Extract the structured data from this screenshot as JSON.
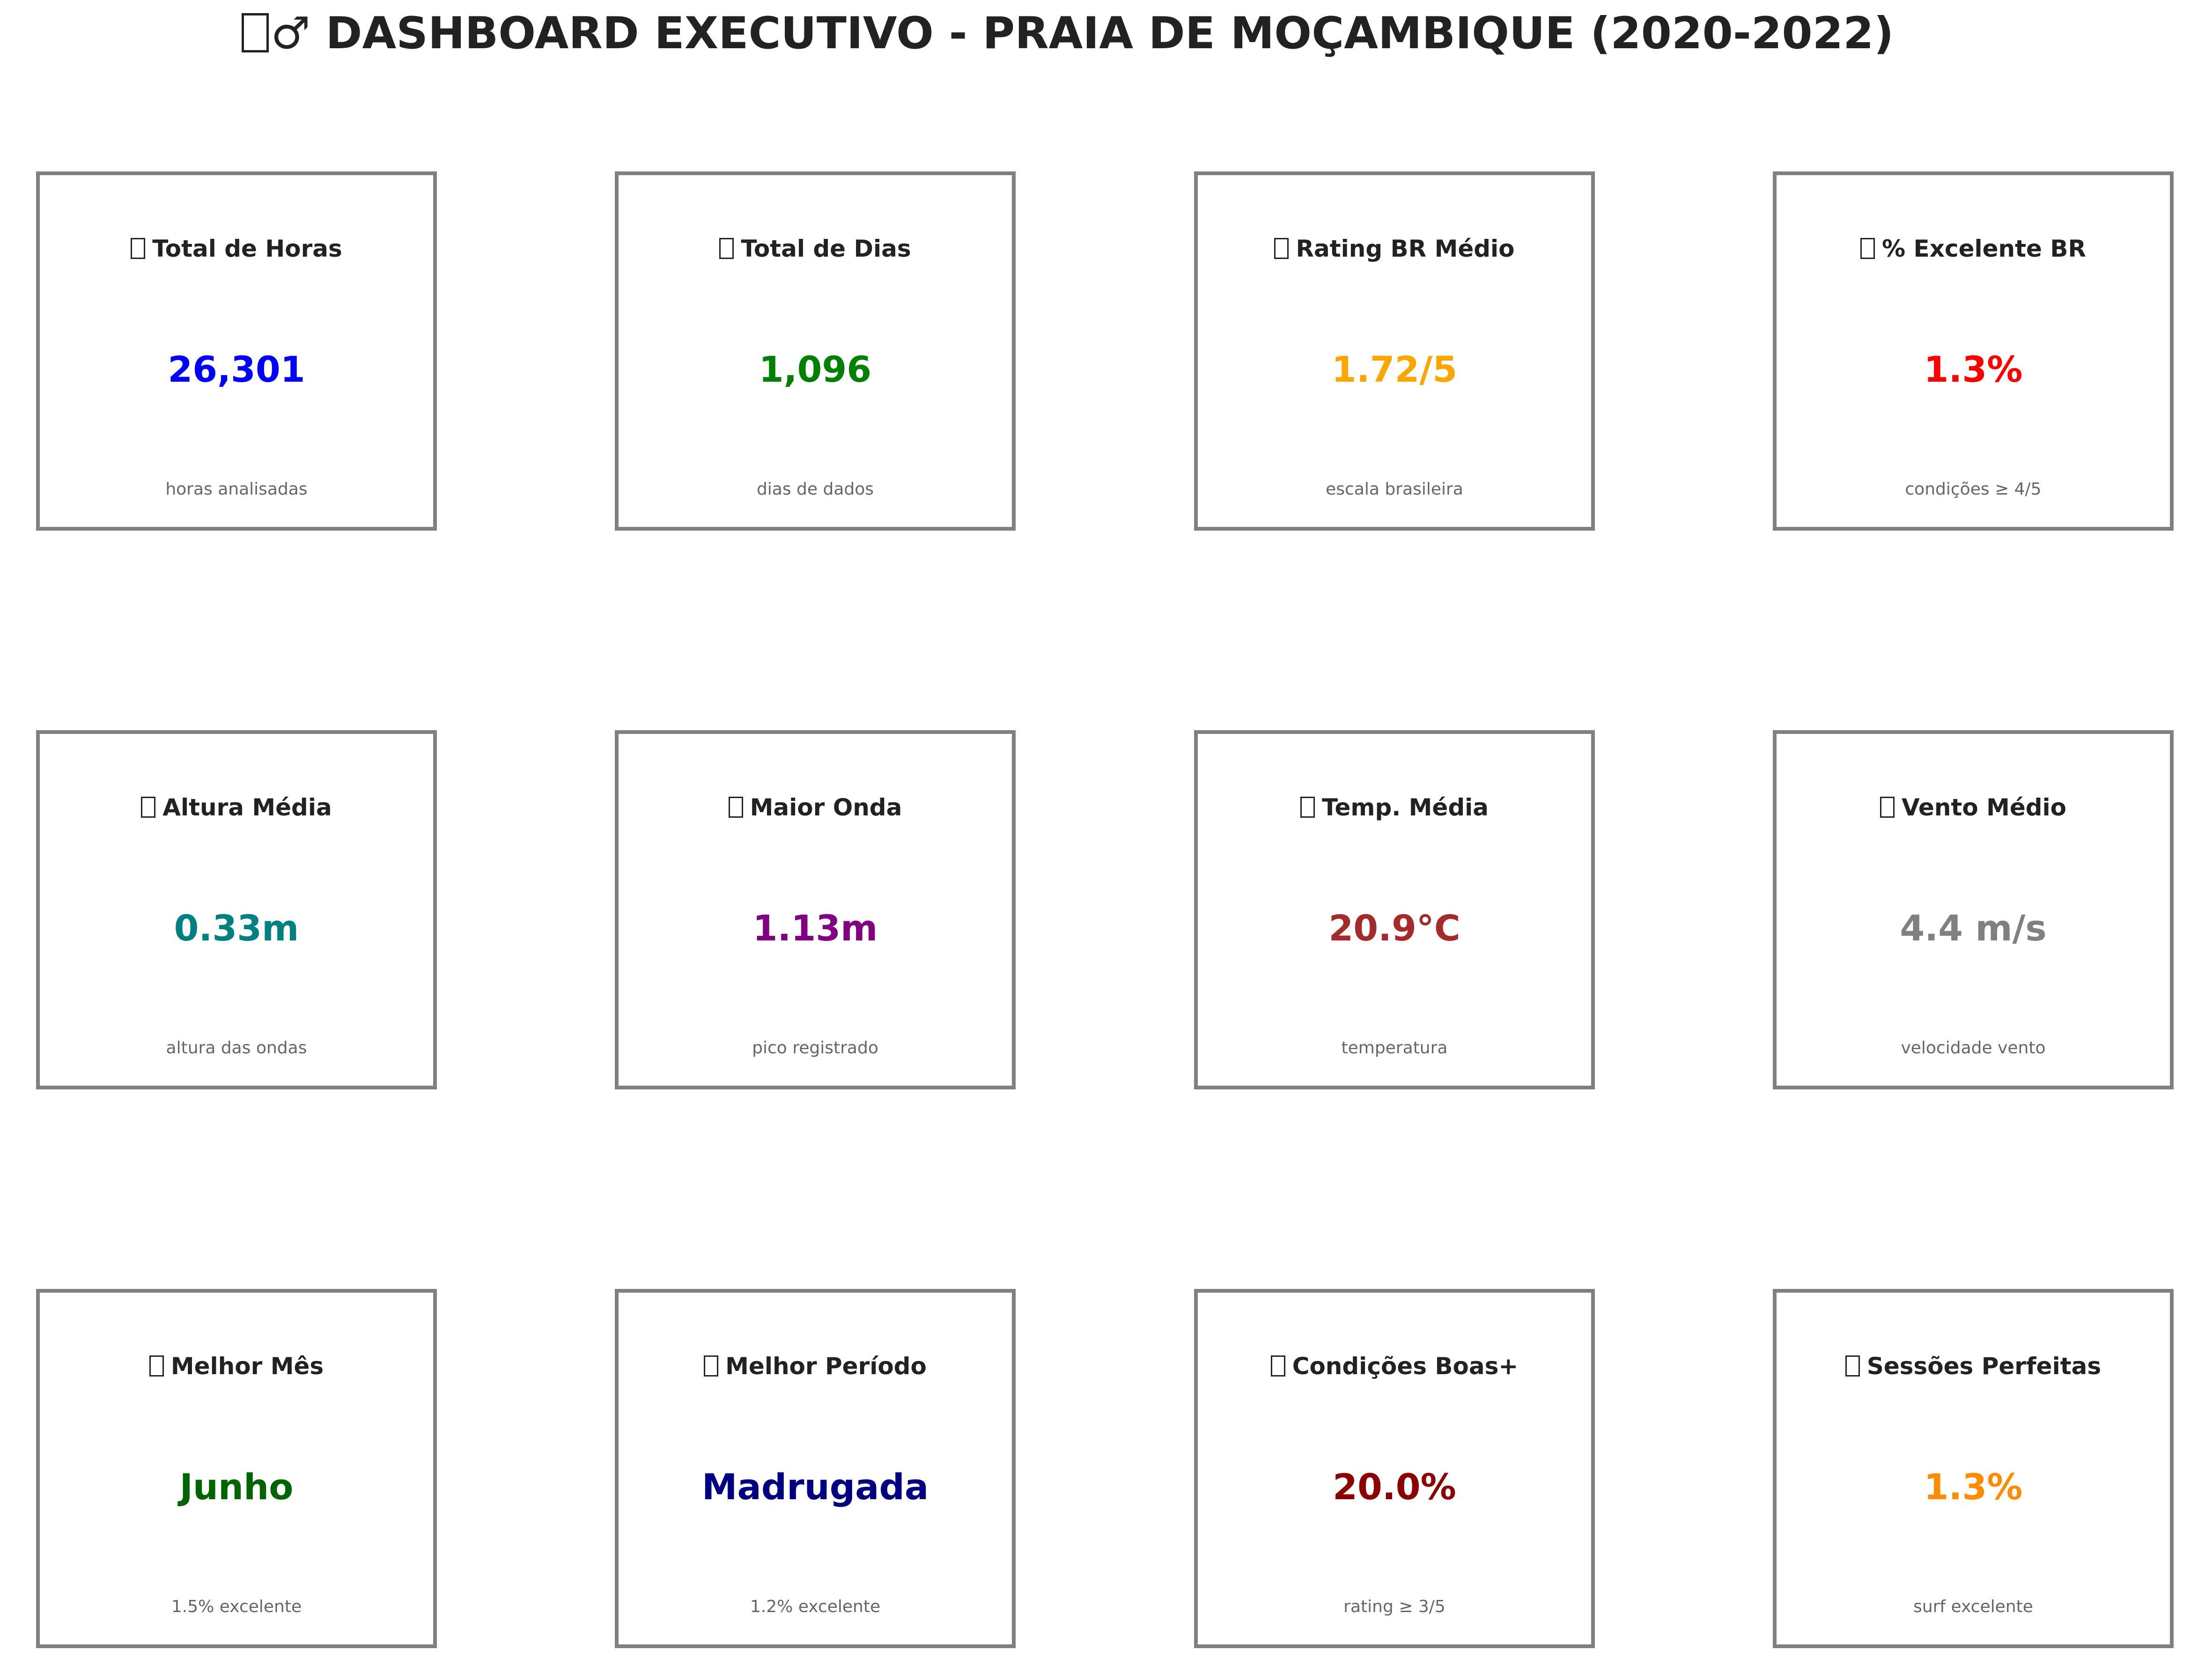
{
  "title": "DASHBOARD EXECUTIVO - PRAIA DE MOÇAMBIQUE (2020-2022)",
  "title_prefix": "♂",
  "title_icon": "missing-glyph-icon",
  "cards": [
    {
      "label": "Total de Horas",
      "value": "26,301",
      "subtitle": "horas analisadas",
      "color": "#0000ff",
      "icon": "missing-glyph-icon"
    },
    {
      "label": "Total de Dias",
      "value": "1,096",
      "subtitle": "dias de dados",
      "color": "#008000",
      "icon": "missing-glyph-icon"
    },
    {
      "label": "Rating BR Médio",
      "value": "1.72/5",
      "subtitle": "escala brasileira",
      "color": "#ffa500",
      "icon": "missing-glyph-icon"
    },
    {
      "label": "% Excelente BR",
      "value": "1.3%",
      "subtitle": "condições ≥ 4/5",
      "color": "#ff0000",
      "icon": "missing-glyph-icon"
    },
    {
      "label": "Altura Média",
      "value": "0.33m",
      "subtitle": "altura das ondas",
      "color": "#008080",
      "icon": "missing-glyph-icon"
    },
    {
      "label": "Maior Onda",
      "value": "1.13m",
      "subtitle": "pico registrado",
      "color": "#800080",
      "icon": "missing-glyph-icon"
    },
    {
      "label": "Temp. Média",
      "value": "20.9°C",
      "subtitle": "temperatura",
      "color": "#a52a2a",
      "icon": "missing-glyph-icon"
    },
    {
      "label": "Vento Médio",
      "value": "4.4 m/s",
      "subtitle": "velocidade vento",
      "color": "#808080",
      "icon": "missing-glyph-icon"
    },
    {
      "label": "Melhor Mês",
      "value": "Junho",
      "subtitle": "1.5% excelente",
      "color": "#006400",
      "icon": "missing-glyph-icon"
    },
    {
      "label": "Melhor Período",
      "value": "Madrugada",
      "subtitle": "1.2% excelente",
      "color": "#000080",
      "icon": "missing-glyph-icon"
    },
    {
      "label": "Condições Boas+",
      "value": "20.0%",
      "subtitle": "rating ≥ 3/5",
      "color": "#8b0000",
      "icon": "missing-glyph-icon"
    },
    {
      "label": "Sessões Perfeitas",
      "value": "1.3%",
      "subtitle": "surf excelente",
      "color": "#ff8c00",
      "icon": "missing-glyph-icon"
    }
  ]
}
